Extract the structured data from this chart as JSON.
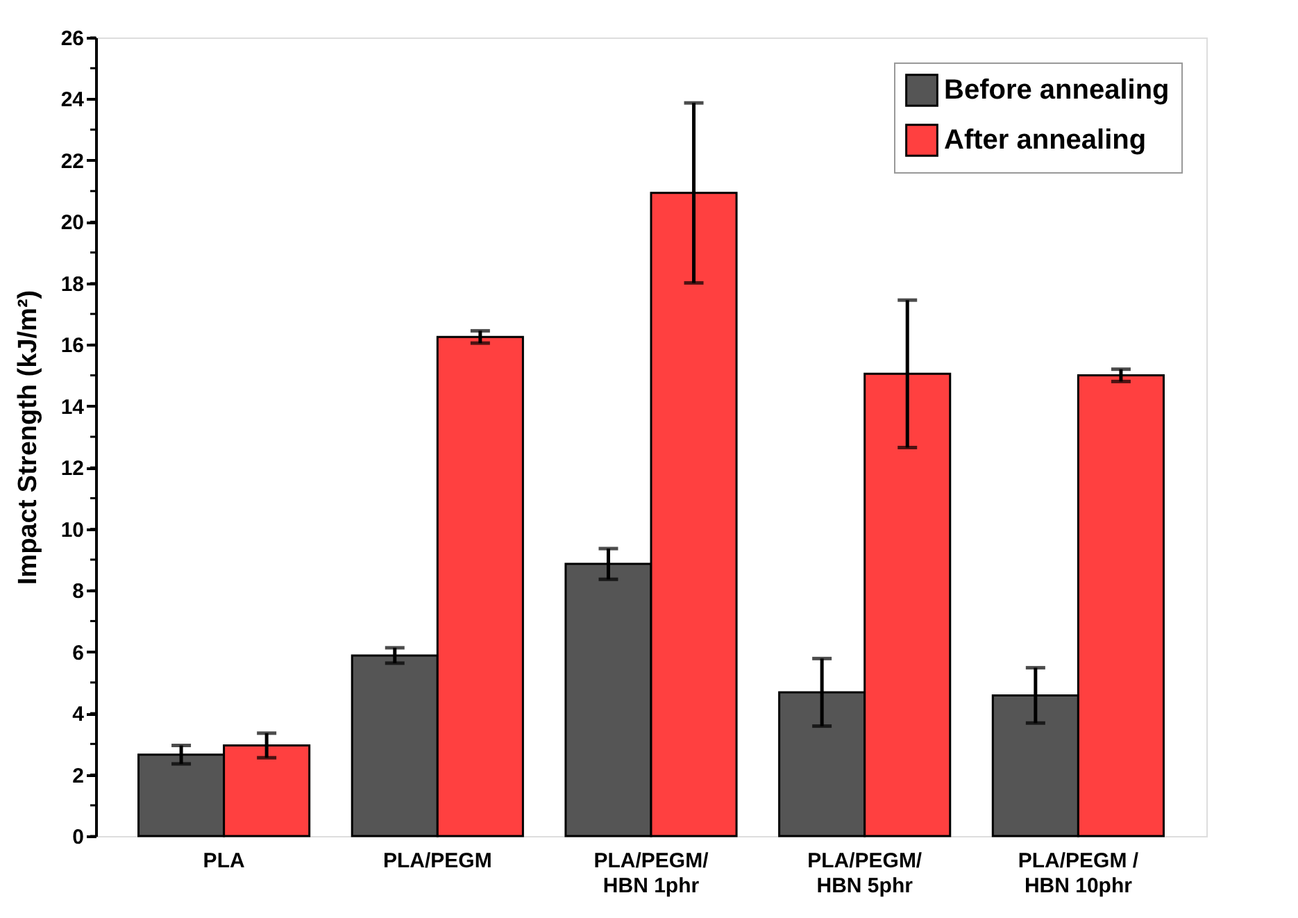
{
  "chart_data": {
    "type": "bar",
    "ylabel": "Impact Strength (kJ/m²)",
    "categories": [
      "PLA",
      "PLA/PEGM",
      "PLA/PEGM/\nHBN 1phr",
      "PLA/PEGM/\nHBN 5phr",
      "PLA/PEGM /\nHBN 10phr"
    ],
    "series": [
      {
        "name": "Before annealing",
        "color": "#555555",
        "values": [
          2.65,
          5.88,
          8.86,
          4.68,
          4.58
        ],
        "errors": [
          0.3,
          0.25,
          0.5,
          1.1,
          0.9
        ]
      },
      {
        "name": "After annealing",
        "color": "#ff4040",
        "values": [
          2.95,
          16.25,
          20.94,
          15.05,
          15.0
        ],
        "errors": [
          0.4,
          0.2,
          2.93,
          2.4,
          0.2
        ]
      }
    ],
    "ylim": [
      0,
      26
    ],
    "yticks": [
      0,
      2,
      4,
      6,
      8,
      10,
      12,
      14,
      16,
      18,
      20,
      22,
      24,
      26
    ],
    "grid": false,
    "legend": "top right"
  }
}
